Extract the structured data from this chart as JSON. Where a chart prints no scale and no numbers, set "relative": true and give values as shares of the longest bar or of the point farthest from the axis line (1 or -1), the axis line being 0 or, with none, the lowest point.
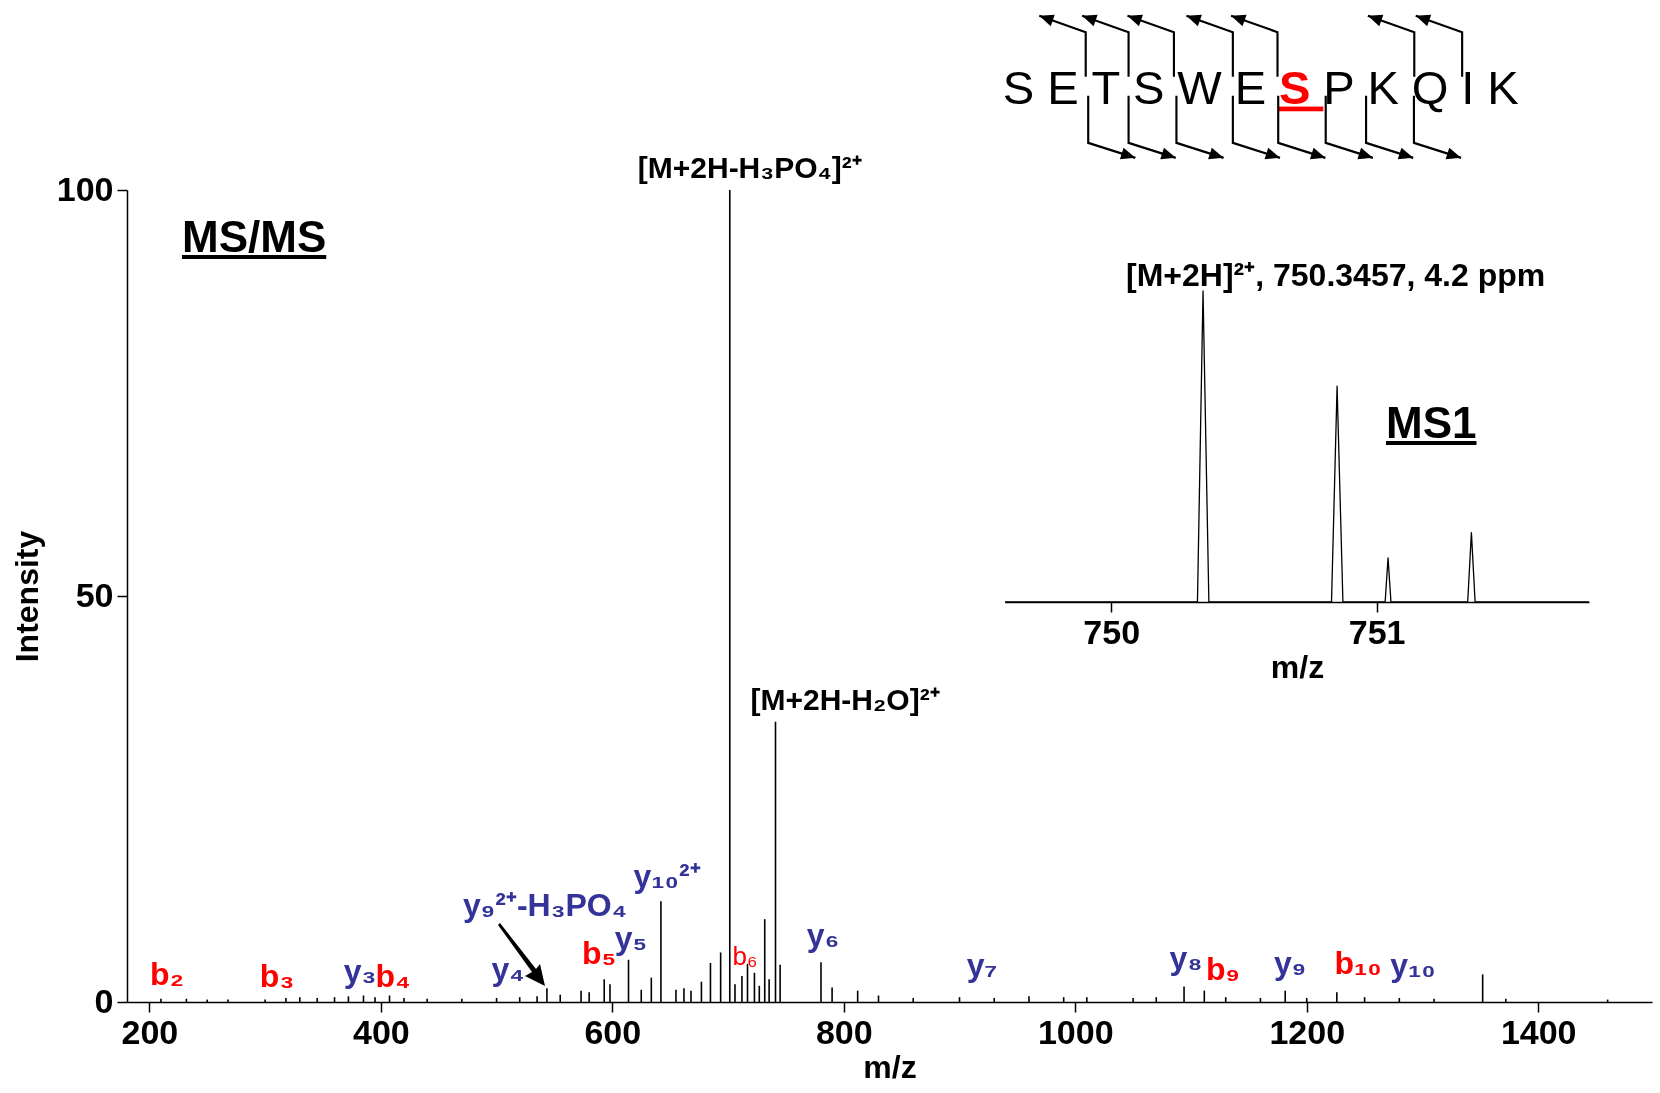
{
  "chart_data": [
    {
      "type": "bar",
      "title": "MS/MS",
      "xlabel": "m/z",
      "ylabel": "Intensity",
      "color": "#000000",
      "x": [
        210,
        232,
        250,
        268,
        300,
        318,
        330,
        345,
        360,
        372,
        385,
        395,
        407.5,
        420,
        440,
        470,
        500,
        520,
        535,
        543.5,
        555,
        573,
        580,
        593,
        598,
        614,
        625,
        633.7,
        642,
        655,
        661.9,
        668,
        677,
        684.8,
        693.6,
        701.5,
        706,
        712,
        716.8,
        722.8,
        727,
        731.7,
        735.5,
        741,
        745,
        780.3,
        789.9,
        812,
        830,
        860,
        900,
        930,
        960,
        990,
        1010,
        1050,
        1070,
        1094,
        1111.5,
        1130,
        1160,
        1181.4,
        1200,
        1226,
        1250,
        1280,
        1310,
        1352,
        1372,
        1460
      ],
      "values": [
        0.4,
        0.4,
        0.3,
        0.3,
        0.3,
        0.5,
        0.6,
        0.5,
        0.6,
        0.7,
        0.8,
        0.6,
        0.8,
        0.5,
        0.4,
        0.4,
        0.5,
        0.6,
        0.7,
        1.7,
        0.9,
        1.4,
        1.2,
        2.8,
        2.2,
        5.2,
        1.5,
        3,
        12.4,
        1.5,
        1.7,
        1.4,
        2.5,
        4.8,
        6.1,
        100,
        2.2,
        3.2,
        4.7,
        3.6,
        2,
        10.2,
        2.8,
        34.5,
        4.6,
        4.9,
        1.8,
        1.4,
        0.8,
        0.5,
        0.6,
        0.5,
        0.7,
        0.6,
        0.6,
        0.5,
        0.6,
        1.9,
        1.4,
        0.6,
        0.5,
        1.4,
        0.5,
        1.2,
        0.6,
        0.5,
        0.4,
        3.4,
        0.4,
        0.3
      ],
      "xlim": [
        185,
        1494
      ],
      "ylim": [
        0,
        100
      ],
      "xticks": [
        200,
        400,
        600,
        800,
        1000,
        1200,
        1400
      ],
      "yticks": [
        0,
        50,
        100
      ],
      "annotations": [
        {
          "text": "[M+2H-H₃PO₄]²⁺",
          "x": 701.5,
          "y": 100
        },
        {
          "text": "[M+2H-H₂O]²⁺",
          "x": 741,
          "y": 34.5
        },
        "b₂",
        "b₃",
        "y₃",
        "b₄",
        "y₄",
        "y₉²⁺-H₃PO₄",
        "b₅",
        "y₅",
        "y₁₀²⁺",
        "b₆",
        "y₆",
        "y₇",
        "y₈",
        "b₉",
        "y₉",
        "b₁₀",
        "y₁₀",
        "SETSWE",
        "S",
        "PKQIK"
      ]
    },
    {
      "type": "line",
      "title": "MS1",
      "subtitle": "[M+2H]²⁺, 750.3457, 4.2 ppm",
      "xlabel": "m/z",
      "color": "#000000",
      "relative": true,
      "tick_labels": "x",
      "x": [
        749.6,
        750.325,
        750.346,
        750.368,
        750.83,
        750.851,
        750.873,
        751.032,
        751.043,
        751.054,
        751.343,
        751.357,
        751.371,
        751.8
      ],
      "values": [
        0,
        0,
        1,
        0,
        0,
        0.694,
        0,
        0,
        0.142,
        0,
        0,
        0.223,
        0,
        0
      ],
      "xlim": [
        749.6,
        751.8
      ],
      "xticks": [
        750,
        751
      ]
    }
  ]
}
